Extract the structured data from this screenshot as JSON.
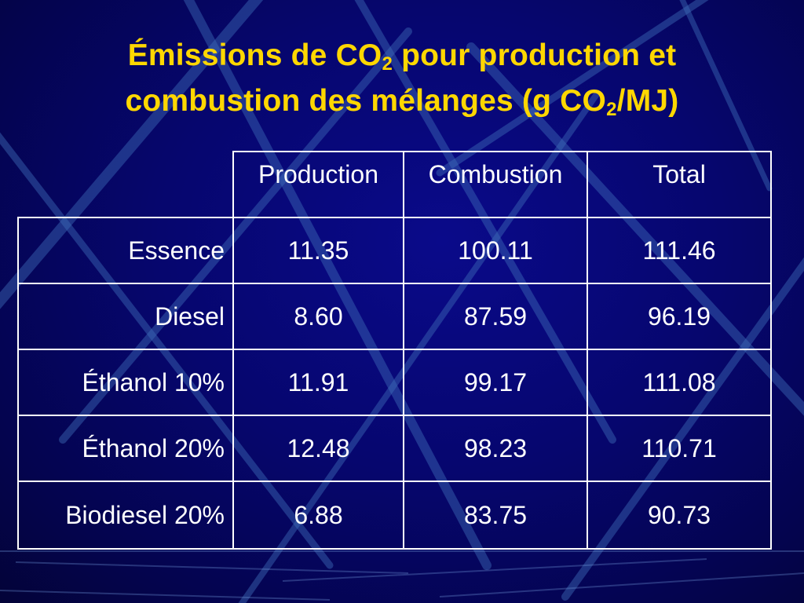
{
  "title": {
    "line1_a": "Émissions de CO",
    "line1_sub": "2",
    "line1_b": " pour production et",
    "line2_a": "combustion des mélanges (g CO",
    "line2_sub": "2",
    "line2_b": "/MJ)"
  },
  "table": {
    "columns": [
      "Production",
      "Combustion",
      "Total"
    ],
    "rows": [
      {
        "label": "Essence",
        "values": [
          "11.35",
          "100.11",
          "111.46"
        ]
      },
      {
        "label": "Diesel",
        "values": [
          "8.60",
          "87.59",
          "96.19"
        ]
      },
      {
        "label": "Éthanol 10%",
        "values": [
          "11.91",
          "99.17",
          "111.08"
        ]
      },
      {
        "label": "Éthanol 20%",
        "values": [
          "12.48",
          "98.23",
          "110.71"
        ]
      },
      {
        "label": "Biodiesel 20%",
        "values": [
          "6.88",
          "83.75",
          "90.73"
        ]
      }
    ]
  },
  "colors": {
    "background": "#06066e",
    "title": "#FFD700",
    "text": "#ffffff",
    "grid": "#ffffff"
  }
}
